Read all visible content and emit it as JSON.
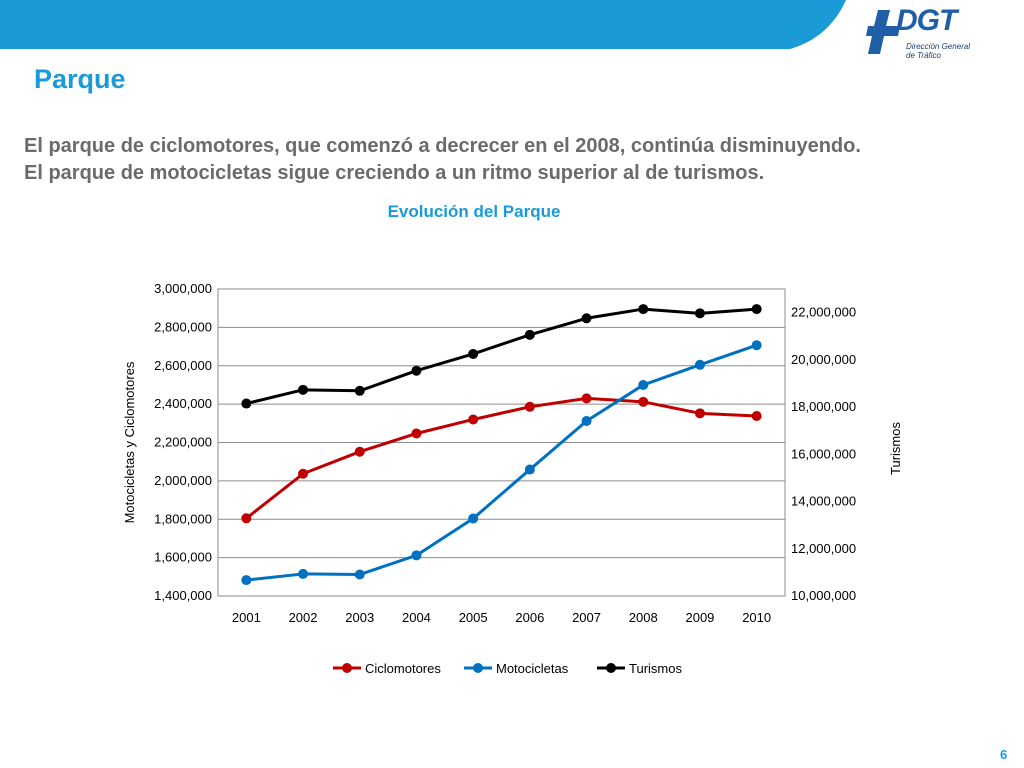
{
  "slide": {
    "title": "Parque",
    "paragraphs": [
      "El parque de ciclomotores, que comenzó a decrecer en el 2008, continúa disminuyendo.",
      "El parque de motocicletas sigue creciendo a un ritmo superior al de turismos."
    ],
    "page_number": "6"
  },
  "logo": {
    "name": "DGT",
    "subtitle_line1": "Dirección General",
    "subtitle_line2": "de Tráfico",
    "color": "#1f5fa8"
  },
  "colors": {
    "banner": "#1a9bd7",
    "accent": "#1a9bd7",
    "body_text": "#6b6b6b"
  },
  "chart_data": {
    "type": "line",
    "title": "Evolución del Parque",
    "categories": [
      "2001",
      "2002",
      "2003",
      "2004",
      "2005",
      "2006",
      "2007",
      "2008",
      "2009",
      "2010"
    ],
    "ylabel": "Motocicletas y Ciclomotores",
    "y2label": "Turismos",
    "ylim": [
      1400000,
      3000000
    ],
    "y2lim": [
      10000000,
      23000000
    ],
    "yticks": [
      "1,400,000",
      "1,600,000",
      "1,800,000",
      "2,000,000",
      "2,200,000",
      "2,400,000",
      "2,600,000",
      "2,800,000",
      "3,000,000"
    ],
    "y2ticks": [
      "10,000,000",
      "12,000,000",
      "14,000,000",
      "16,000,000",
      "18,000,000",
      "20,000,000",
      "22,000,000"
    ],
    "grid": true,
    "legend_position": "bottom",
    "series": [
      {
        "name": "Ciclomotores",
        "axis": "left",
        "color": "#c00000",
        "values": [
          1805000,
          2037000,
          2152000,
          2247000,
          2320000,
          2386000,
          2430000,
          2412000,
          2352000,
          2338000
        ]
      },
      {
        "name": "Motocicletas",
        "axis": "left",
        "color": "#0070c0",
        "values": [
          1483000,
          1515000,
          1512000,
          1612000,
          1804000,
          2059000,
          2312000,
          2500000,
          2605000,
          2707000
        ]
      },
      {
        "name": "Turismos",
        "axis": "right",
        "color": "#000000",
        "values": [
          18150000,
          18730000,
          18690000,
          19540000,
          20250000,
          21060000,
          21760000,
          22150000,
          21970000,
          22150000
        ]
      }
    ]
  }
}
